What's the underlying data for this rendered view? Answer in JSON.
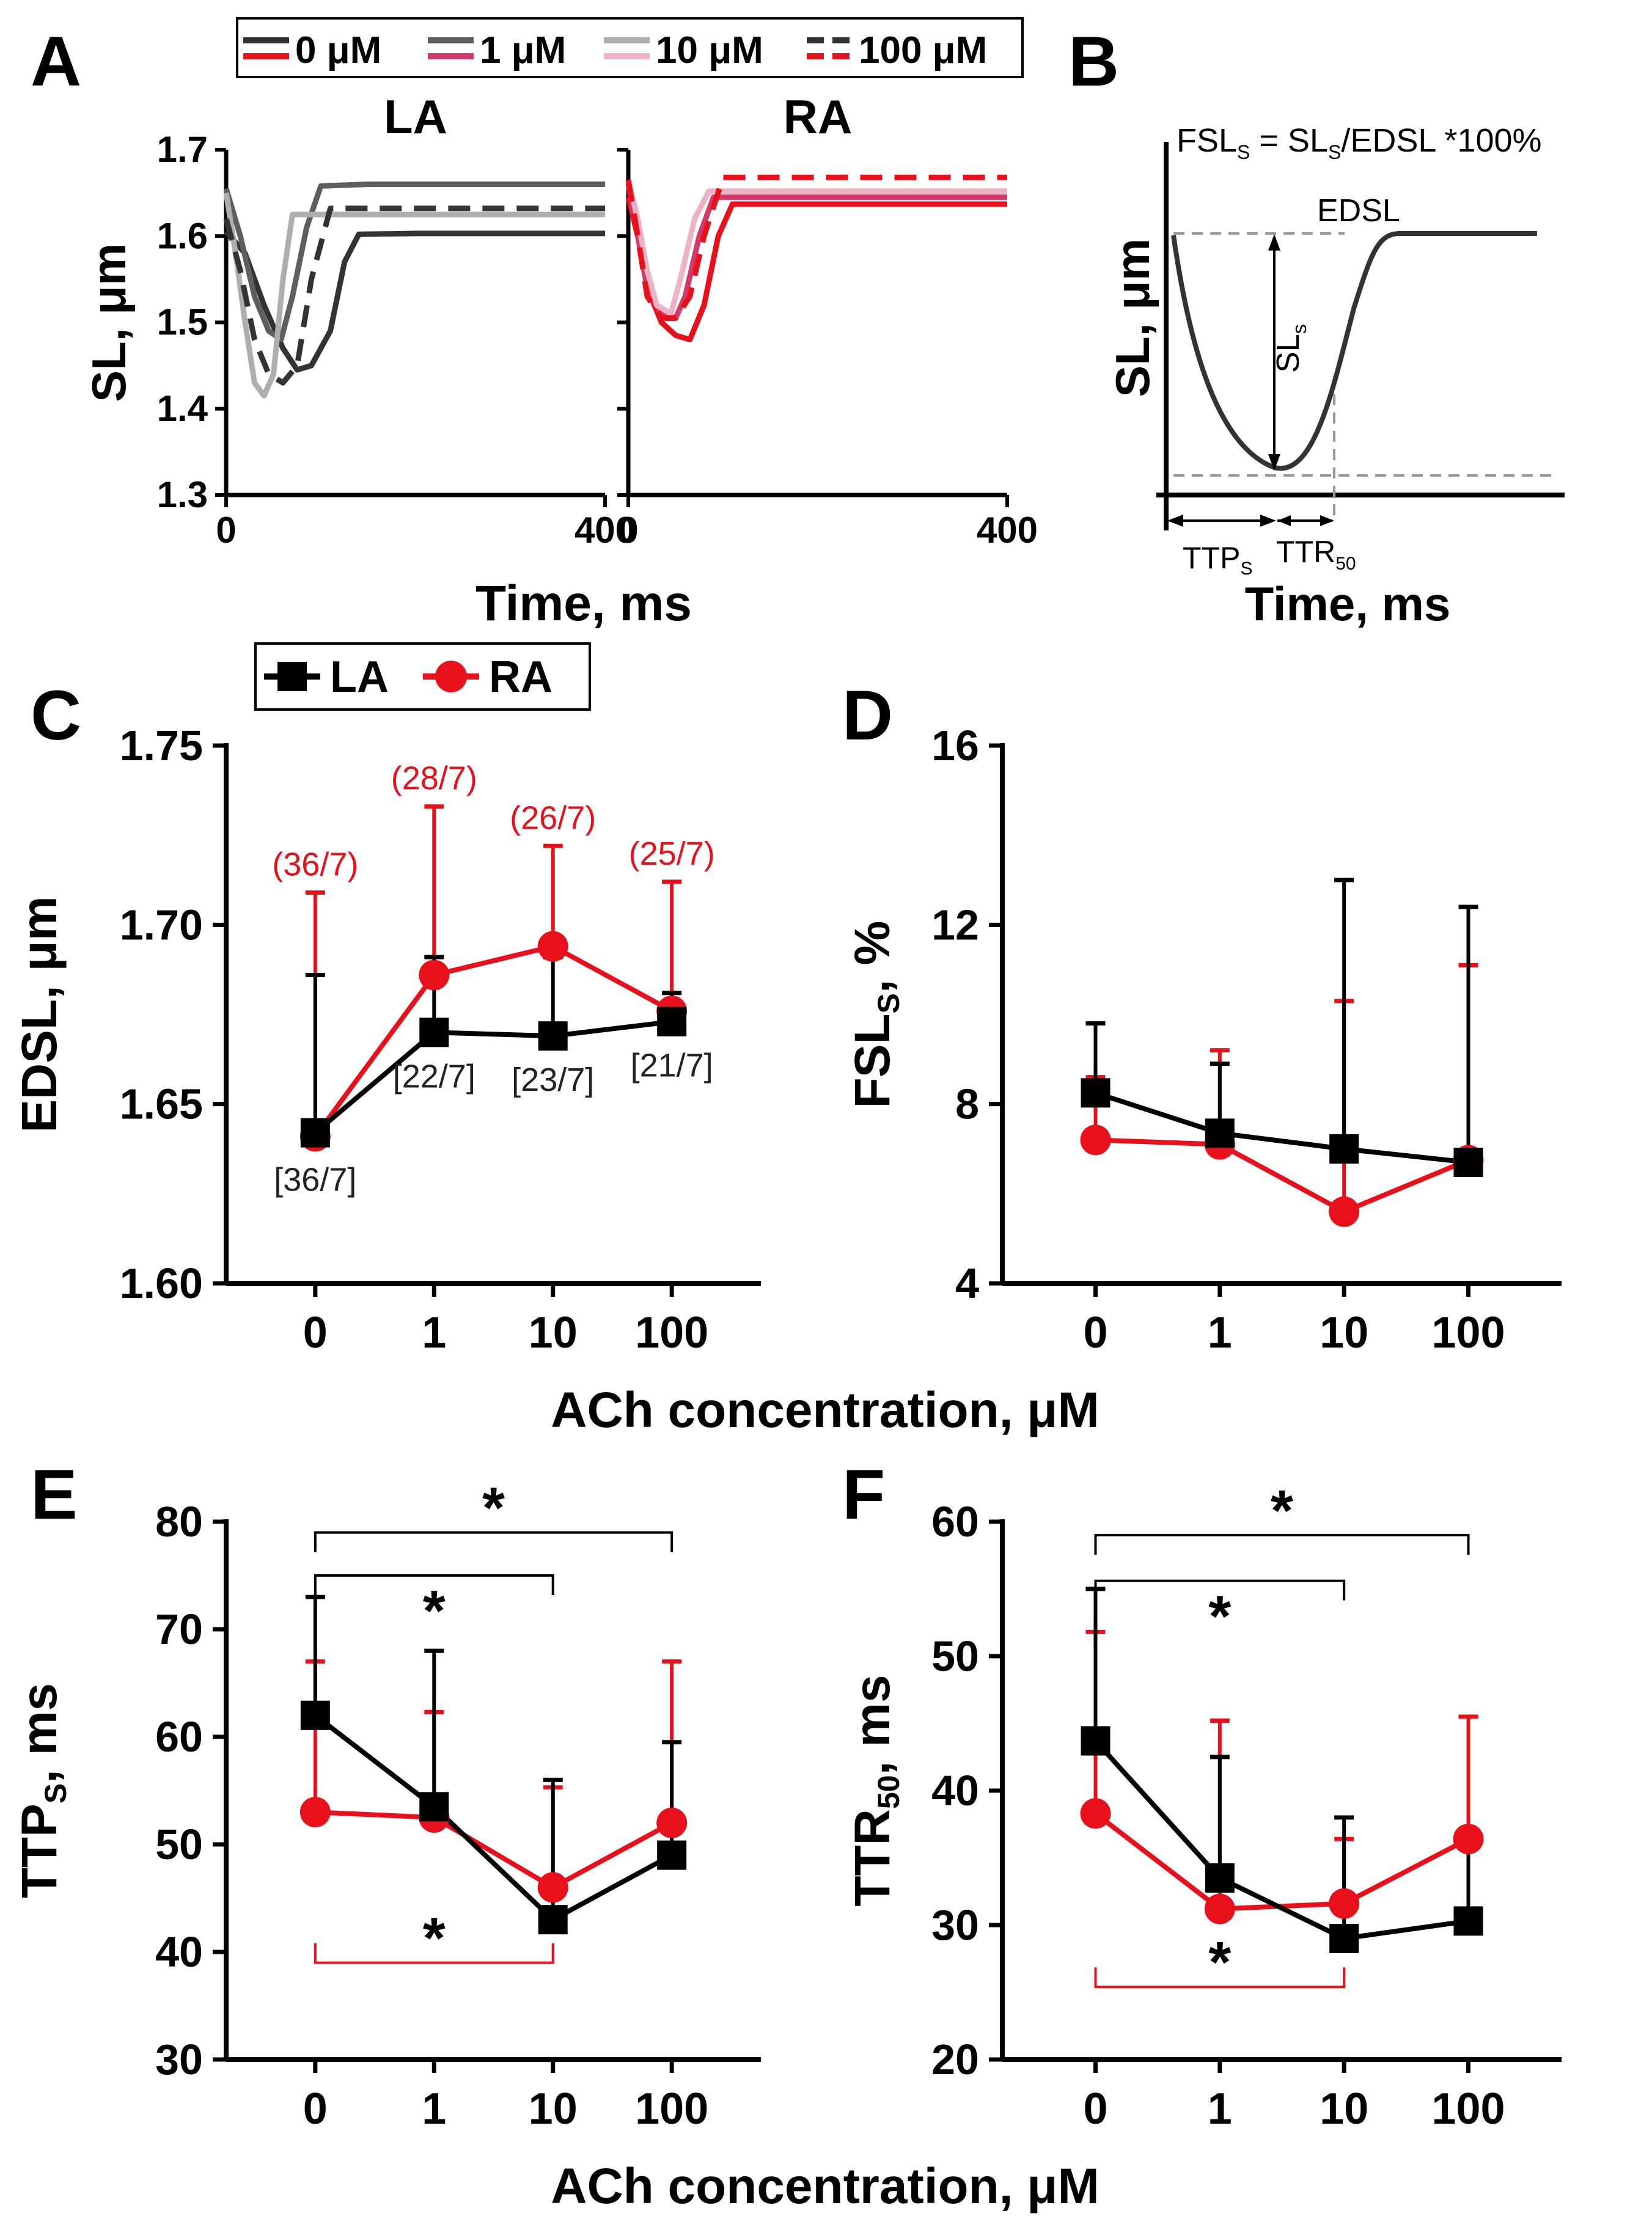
{
  "figure": {
    "panel_labels": [
      "A",
      "B",
      "C",
      "D",
      "E",
      "F"
    ]
  },
  "colors": {
    "black": "#000000",
    "red": "#e8101a",
    "gray_1uM": "#5e5e62",
    "gray_10uM": "#aeaeae",
    "pink_1uM": "#d23a6a",
    "pink_10uM": "#eeb2c4",
    "dashed_gray": "#999999"
  },
  "legend_a": {
    "items": [
      {
        "label": "0 μM",
        "colors": [
          "#333333",
          "#e8101a"
        ],
        "dash": false
      },
      {
        "label": "1 μM",
        "colors": [
          "#5e5e62",
          "#d23a6a"
        ],
        "dash": false
      },
      {
        "label": "10 μM",
        "colors": [
          "#aeaeae",
          "#eeb2c4"
        ],
        "dash": false
      },
      {
        "label": "100 μM",
        "colors": [
          "#333333",
          "#e8101a"
        ],
        "dash": true
      }
    ]
  },
  "legend_c": {
    "items": [
      {
        "label": "LA",
        "color": "#000000",
        "marker": "square"
      },
      {
        "label": "RA",
        "color": "#e8101a",
        "marker": "circle"
      }
    ]
  },
  "schematic_b": {
    "formula_main": "FSL",
    "formula_sub": "S",
    "formula_rest": " = SL",
    "formula_sub2": "S",
    "formula_tail": "/EDSL *100%",
    "edsl_label": "EDSL",
    "sls_label": "SL",
    "sls_sub": "s",
    "ttp_label": "TTP",
    "ttp_sub": "S",
    "ttr_label": "TTR",
    "ttr_sub": "50",
    "ylabel": "SL, μm",
    "xlabel": "Time, ms"
  },
  "shared": {
    "xlabel_cd": "ACh concentration, μM",
    "xlabel_ef": "ACh concentration, μM"
  },
  "chart_data": [
    {
      "id": "A",
      "type": "line",
      "subplots": [
        {
          "title": "LA",
          "series": [
            {
              "name": "0 μM",
              "color": "#333333",
              "dash": false,
              "x": [
                0,
                20,
                40,
                60,
                75,
                90,
                110,
                125,
                140,
                200,
                300,
                400
              ],
              "y": [
                1.605,
                1.58,
                1.52,
                1.47,
                1.445,
                1.45,
                1.49,
                1.57,
                1.602,
                1.603,
                1.603,
                1.603
              ]
            },
            {
              "name": "1 μM",
              "color": "#5e5e62",
              "dash": false,
              "x": [
                0,
                15,
                30,
                45,
                58,
                70,
                85,
                100,
                150,
                250,
                400
              ],
              "y": [
                1.655,
                1.6,
                1.53,
                1.49,
                1.48,
                1.53,
                1.61,
                1.658,
                1.66,
                1.66,
                1.66
              ]
            },
            {
              "name": "10 μM",
              "color": "#aeaeae",
              "dash": false,
              "x": [
                0,
                10,
                20,
                30,
                40,
                50,
                60,
                70,
                150,
                250,
                400
              ],
              "y": [
                1.65,
                1.58,
                1.5,
                1.43,
                1.415,
                1.44,
                1.55,
                1.625,
                1.625,
                1.625,
                1.625
              ]
            },
            {
              "name": "100 μM",
              "color": "#333333",
              "dash": true,
              "x": [
                0,
                15,
                30,
                45,
                60,
                75,
                90,
                110,
                200,
                300,
                400
              ],
              "y": [
                1.62,
                1.56,
                1.48,
                1.44,
                1.43,
                1.45,
                1.55,
                1.632,
                1.632,
                1.632,
                1.632
              ]
            }
          ],
          "xlim": [
            0,
            400
          ],
          "ylim": [
            1.3,
            1.7
          ],
          "yticks": [
            "1.3",
            "1.4",
            "1.5",
            "1.6",
            "1.7"
          ],
          "xticks": [
            "0",
            "400"
          ]
        },
        {
          "title": "RA",
          "series": [
            {
              "name": "0 μM",
              "color": "#e8101a",
              "dash": false,
              "x": [
                0,
                10,
                20,
                35,
                50,
                65,
                80,
                95,
                110,
                200,
                400
              ],
              "y": [
                1.645,
                1.6,
                1.54,
                1.5,
                1.485,
                1.48,
                1.52,
                1.6,
                1.637,
                1.637,
                1.637
              ]
            },
            {
              "name": "1 μM",
              "color": "#d23a6a",
              "dash": false,
              "x": [
                0,
                10,
                20,
                35,
                50,
                60,
                75,
                90,
                200,
                400
              ],
              "y": [
                1.66,
                1.6,
                1.54,
                1.51,
                1.505,
                1.53,
                1.6,
                1.645,
                1.645,
                1.645
              ]
            },
            {
              "name": "10 μM",
              "color": "#eeb2c4",
              "dash": false,
              "x": [
                0,
                10,
                20,
                30,
                45,
                55,
                70,
                85,
                200,
                400
              ],
              "y": [
                1.665,
                1.62,
                1.56,
                1.52,
                1.51,
                1.55,
                1.62,
                1.652,
                1.652,
                1.652
              ]
            },
            {
              "name": "100 μM",
              "color": "#e8101a",
              "dash": true,
              "x": [
                0,
                10,
                20,
                35,
                50,
                65,
                80,
                100,
                200,
                400
              ],
              "y": [
                1.665,
                1.6,
                1.53,
                1.505,
                1.505,
                1.53,
                1.6,
                1.668,
                1.668,
                1.668
              ]
            }
          ],
          "xlim": [
            0,
            400
          ],
          "ylim": [
            1.3,
            1.7
          ],
          "xticks": [
            "0",
            "400"
          ]
        }
      ],
      "ylabel": "SL, μm",
      "xlabel": "Time, ms"
    },
    {
      "id": "C",
      "type": "line",
      "categories": [
        "0",
        "1",
        "10",
        "100"
      ],
      "ylabel": "EDSL, μm",
      "xlabel": "ACh concentration, μM",
      "ylim": [
        1.6,
        1.75
      ],
      "yticks": [
        "1.60",
        "1.65",
        "1.70",
        "1.75"
      ],
      "series": [
        {
          "name": "LA",
          "color": "#000000",
          "marker": "square",
          "values": [
            1.642,
            1.67,
            1.669,
            1.673
          ],
          "err_upper": [
            1.686,
            1.691,
            1.691,
            1.681
          ],
          "n_labels": [
            "[36/7]",
            "[22/7]",
            "[23/7]",
            "[21/7]"
          ]
        },
        {
          "name": "RA",
          "color": "#e8101a",
          "marker": "circle",
          "values": [
            1.641,
            1.686,
            1.694,
            1.676
          ],
          "err_upper": [
            1.709,
            1.733,
            1.722,
            1.712
          ],
          "n_labels": [
            "(36/7)",
            "(28/7)",
            "(26/7)",
            "(25/7)"
          ]
        }
      ]
    },
    {
      "id": "D",
      "type": "line",
      "categories": [
        "0",
        "1",
        "10",
        "100"
      ],
      "ylabel_main": "FSL",
      "ylabel_sub": "S",
      "ylabel_tail": ", %",
      "xlabel": "ACh concentration, μM",
      "ylim": [
        4,
        16
      ],
      "yticks": [
        "4",
        "8",
        "12",
        "16"
      ],
      "series": [
        {
          "name": "LA",
          "color": "#000000",
          "marker": "square",
          "values": [
            8.25,
            7.35,
            7.0,
            6.7
          ],
          "err_upper": [
            9.8,
            8.9,
            13.0,
            12.4
          ]
        },
        {
          "name": "RA",
          "color": "#e8101a",
          "marker": "circle",
          "values": [
            7.2,
            7.1,
            5.6,
            6.75
          ],
          "err_upper": [
            8.6,
            9.2,
            10.3,
            11.1
          ]
        }
      ]
    },
    {
      "id": "E",
      "type": "line",
      "categories": [
        "0",
        "1",
        "10",
        "100"
      ],
      "ylabel_main": "TTP",
      "ylabel_sub": "S",
      "ylabel_tail": ", ms",
      "xlabel": "ACh concentration, μM",
      "ylim": [
        30,
        80
      ],
      "yticks": [
        "30",
        "40",
        "50",
        "60",
        "70",
        "80"
      ],
      "series": [
        {
          "name": "LA",
          "color": "#000000",
          "marker": "square",
          "values": [
            62,
            53.5,
            43,
            49
          ],
          "err_upper": [
            73,
            68,
            56,
            59.5
          ]
        },
        {
          "name": "RA",
          "color": "#e8101a",
          "marker": "circle",
          "values": [
            53,
            52.5,
            46,
            52
          ],
          "err_upper": [
            67,
            62.3,
            55.3,
            67
          ]
        }
      ],
      "significance": [
        {
          "from": 0,
          "to": 3,
          "series": "LA",
          "label": "*",
          "y": 79
        },
        {
          "from": 0,
          "to": 2,
          "series": "LA",
          "label": "*",
          "y": 75
        },
        {
          "from": 0,
          "to": 2,
          "series": "RA",
          "label": "*",
          "y": 39
        }
      ]
    },
    {
      "id": "F",
      "type": "line",
      "categories": [
        "0",
        "1",
        "10",
        "100"
      ],
      "ylabel_main": "TTR",
      "ylabel_sub": "50",
      "ylabel_tail": ", ms",
      "xlabel": "ACh concentration, μM",
      "ylim": [
        20,
        60
      ],
      "yticks": [
        "20",
        "30",
        "40",
        "50",
        "60"
      ],
      "series": [
        {
          "name": "LA",
          "color": "#000000",
          "marker": "square",
          "values": [
            43.7,
            33.5,
            29,
            30.3
          ],
          "err_upper": [
            55,
            42.5,
            38,
            36
          ]
        },
        {
          "name": "RA",
          "color": "#e8101a",
          "marker": "circle",
          "values": [
            38.3,
            31.2,
            31.6,
            36.4
          ],
          "err_upper": [
            51.8,
            45.2,
            36.4,
            45.5
          ]
        }
      ],
      "significance": [
        {
          "from": 0,
          "to": 3,
          "series": "LA",
          "label": "*",
          "y": 59
        },
        {
          "from": 0,
          "to": 2,
          "series": "LA",
          "label": "*",
          "y": 55.6
        },
        {
          "from": 0,
          "to": 2,
          "series": "RA",
          "label": "*",
          "y": 25.4
        }
      ]
    }
  ]
}
